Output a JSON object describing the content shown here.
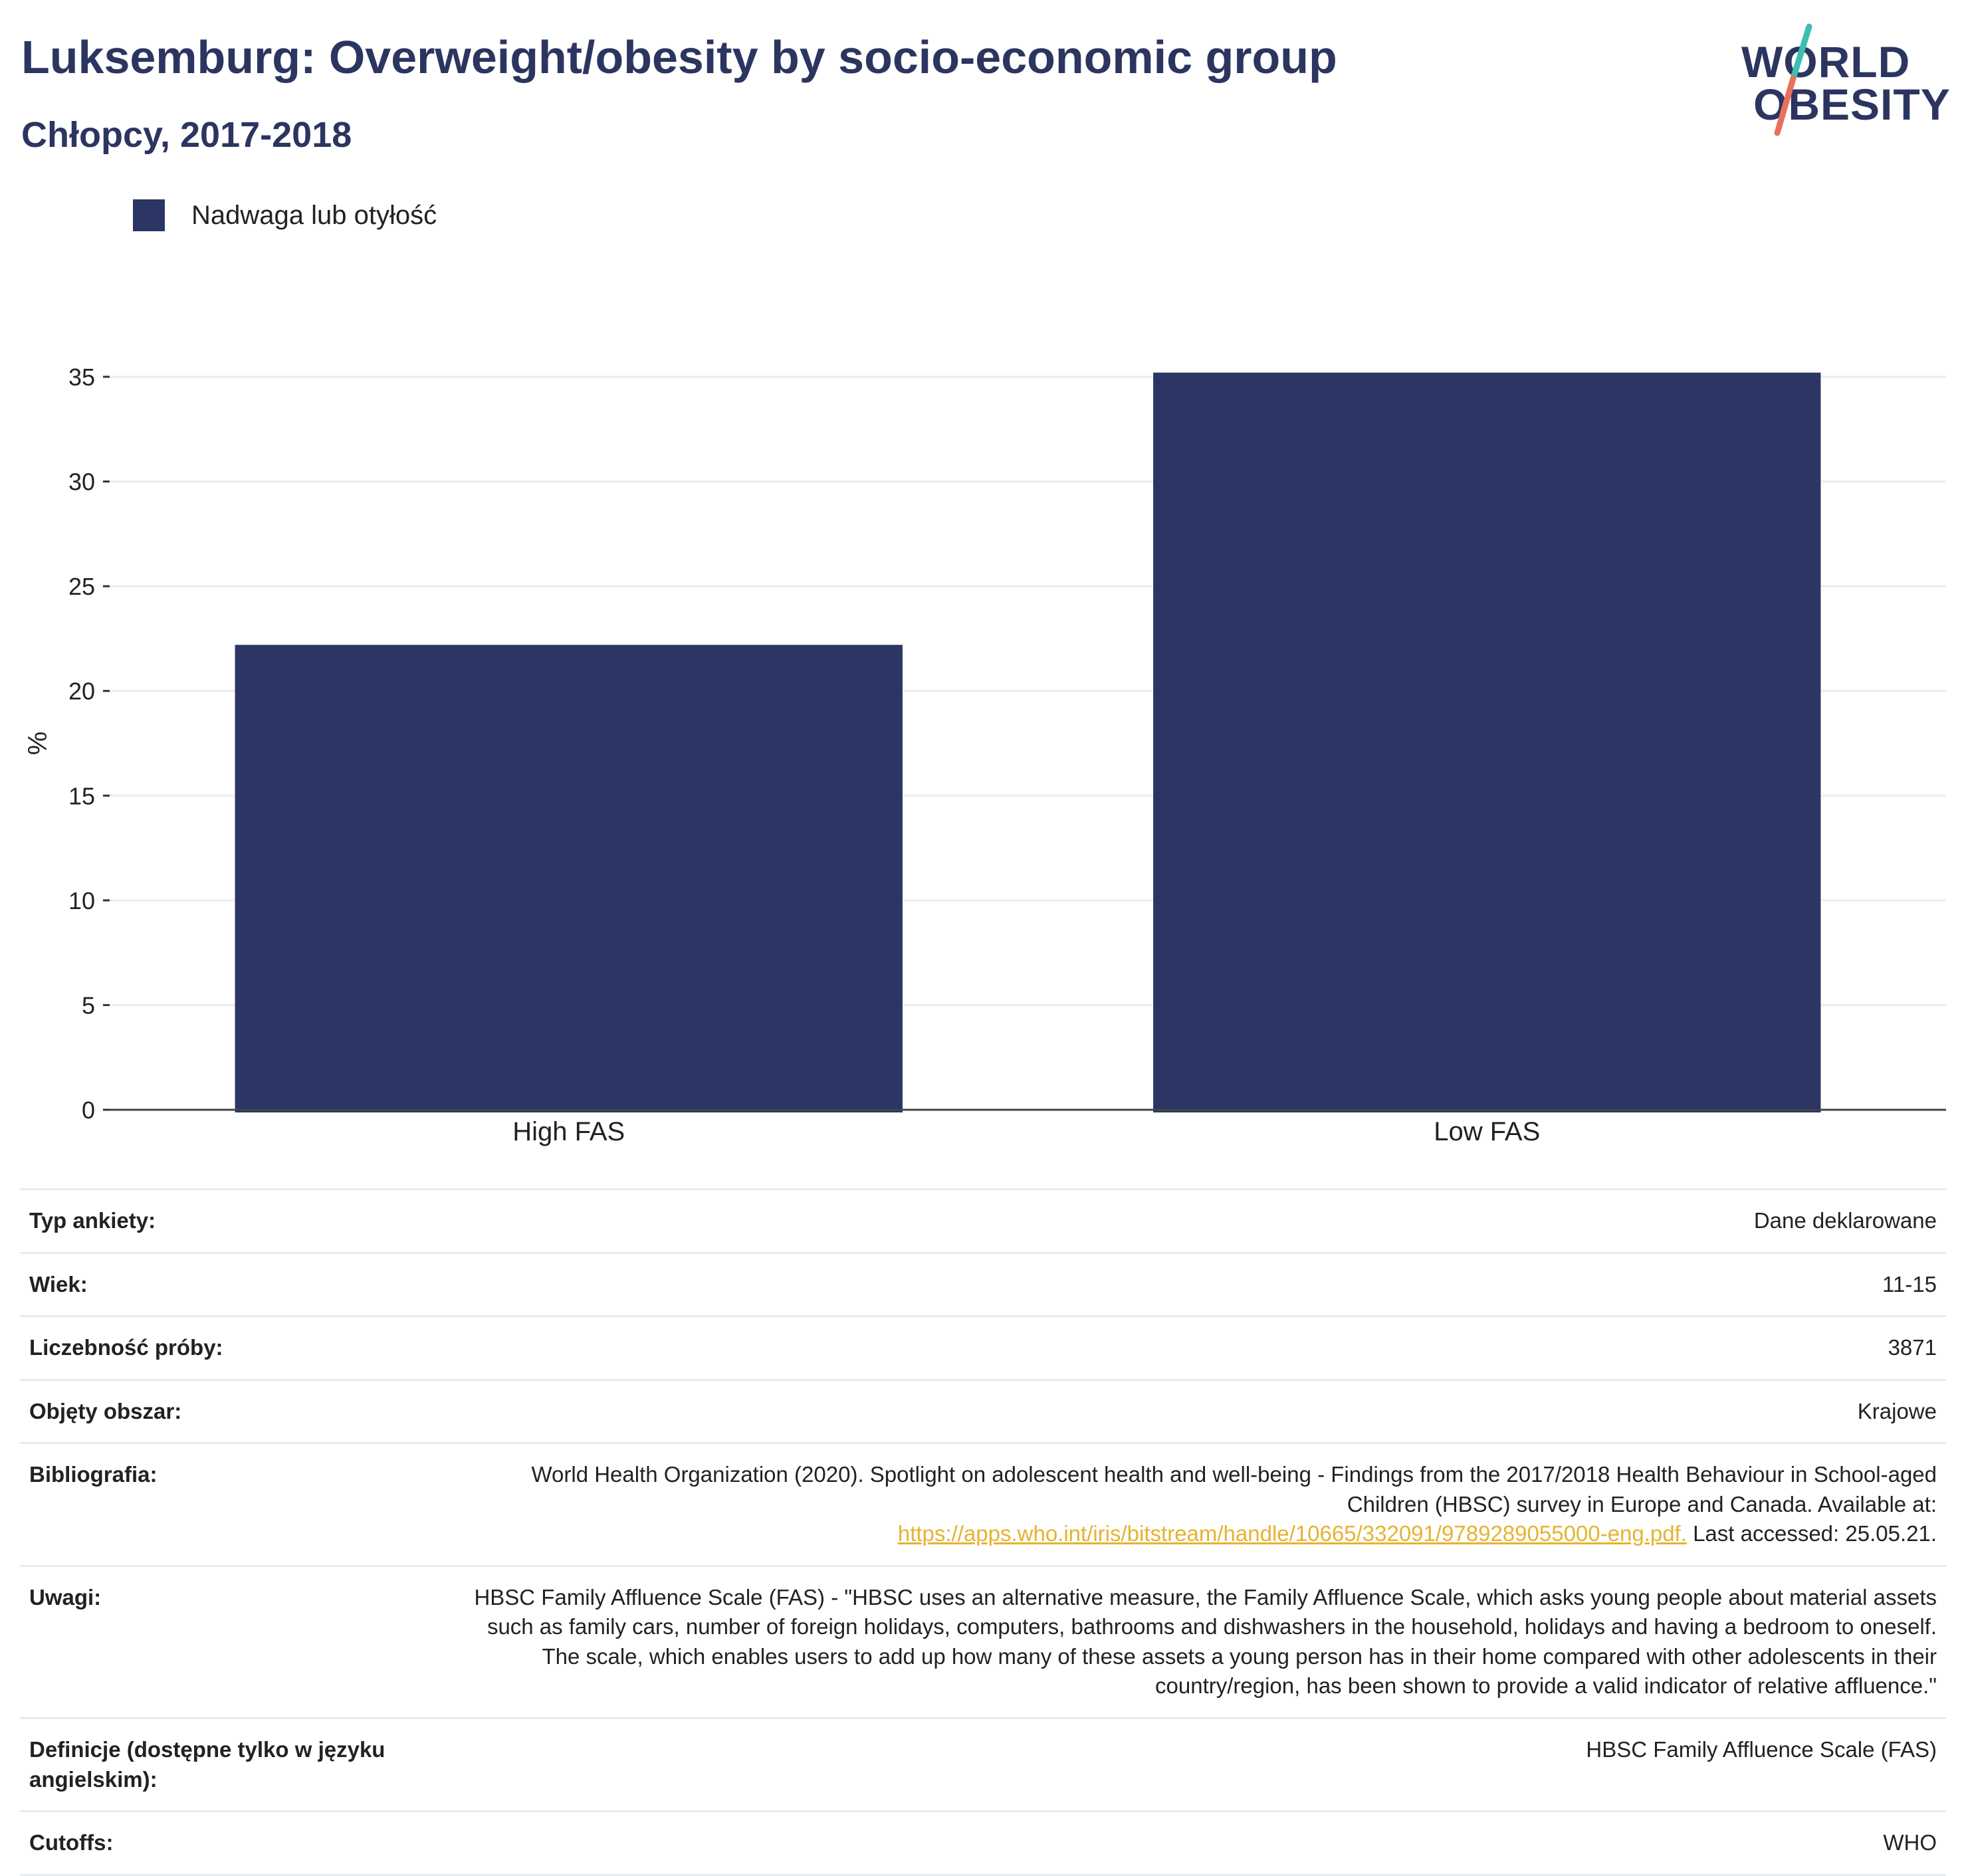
{
  "header": {
    "title": "Luksemburg: Overweight/obesity by socio-economic group",
    "subtitle": "Chłopcy, 2017-2018"
  },
  "logo": {
    "line1": "WORLD",
    "line2": "OBESITY",
    "colors": {
      "text": "#2b3560",
      "slash_top": "#3bbfb3",
      "slash_bottom": "#e8705c"
    }
  },
  "legend": {
    "label": "Nadwaga lub otyłość",
    "color": "#2b3664"
  },
  "chart_data": {
    "type": "bar",
    "categories": [
      "High FAS",
      "Low FAS"
    ],
    "series": [
      {
        "name": "Nadwaga lub otyłość",
        "values": [
          22.2,
          35.2
        ],
        "color": "#2b3664"
      }
    ],
    "ylabel": "%",
    "xlabel": "",
    "ylim": [
      0,
      35
    ],
    "yticks": [
      0,
      5,
      10,
      15,
      20,
      25,
      30,
      35
    ],
    "grid": true,
    "legend_position": "top-left"
  },
  "meta": {
    "survey_type": {
      "label": "Typ ankiety:",
      "value": "Dane deklarowane"
    },
    "age": {
      "label": "Wiek:",
      "value": "11-15"
    },
    "sample": {
      "label": "Liczebność próby:",
      "value": "3871"
    },
    "area": {
      "label": "Objęty obszar:",
      "value": "Krajowe"
    },
    "bibliography": {
      "label": "Bibliografia:",
      "text": "World Health Organization (2020). Spotlight on adolescent health and well-being - Findings from the 2017/2018 Health Behaviour in School-aged Children (HBSC) survey in Europe and Canada. Available at:",
      "link": "https://apps.who.int/iris/bitstream/handle/10665/332091/9789289055000-eng.pdf.",
      "after": "Last accessed: 25.05.21."
    },
    "notes": {
      "label": "Uwagi:",
      "value": "HBSC Family Affluence Scale (FAS) - \"HBSC uses an alternative measure, the Family Affluence Scale, which asks young people about material assets such as family cars, number of foreign holidays, computers, bathrooms and dishwashers in the household, holidays and having a bedroom to oneself. The scale, which enables users to add up how many of these assets a young person has in their home compared with other adolescents in their country/region, has been shown to provide a valid indicator of relative affluence.\""
    },
    "definitions": {
      "label": "Definicje (dostępne tylko w języku angielskim):",
      "value": "HBSC Family Affluence Scale (FAS)"
    },
    "cutoffs": {
      "label": "Cutoffs:",
      "value": "WHO"
    }
  }
}
